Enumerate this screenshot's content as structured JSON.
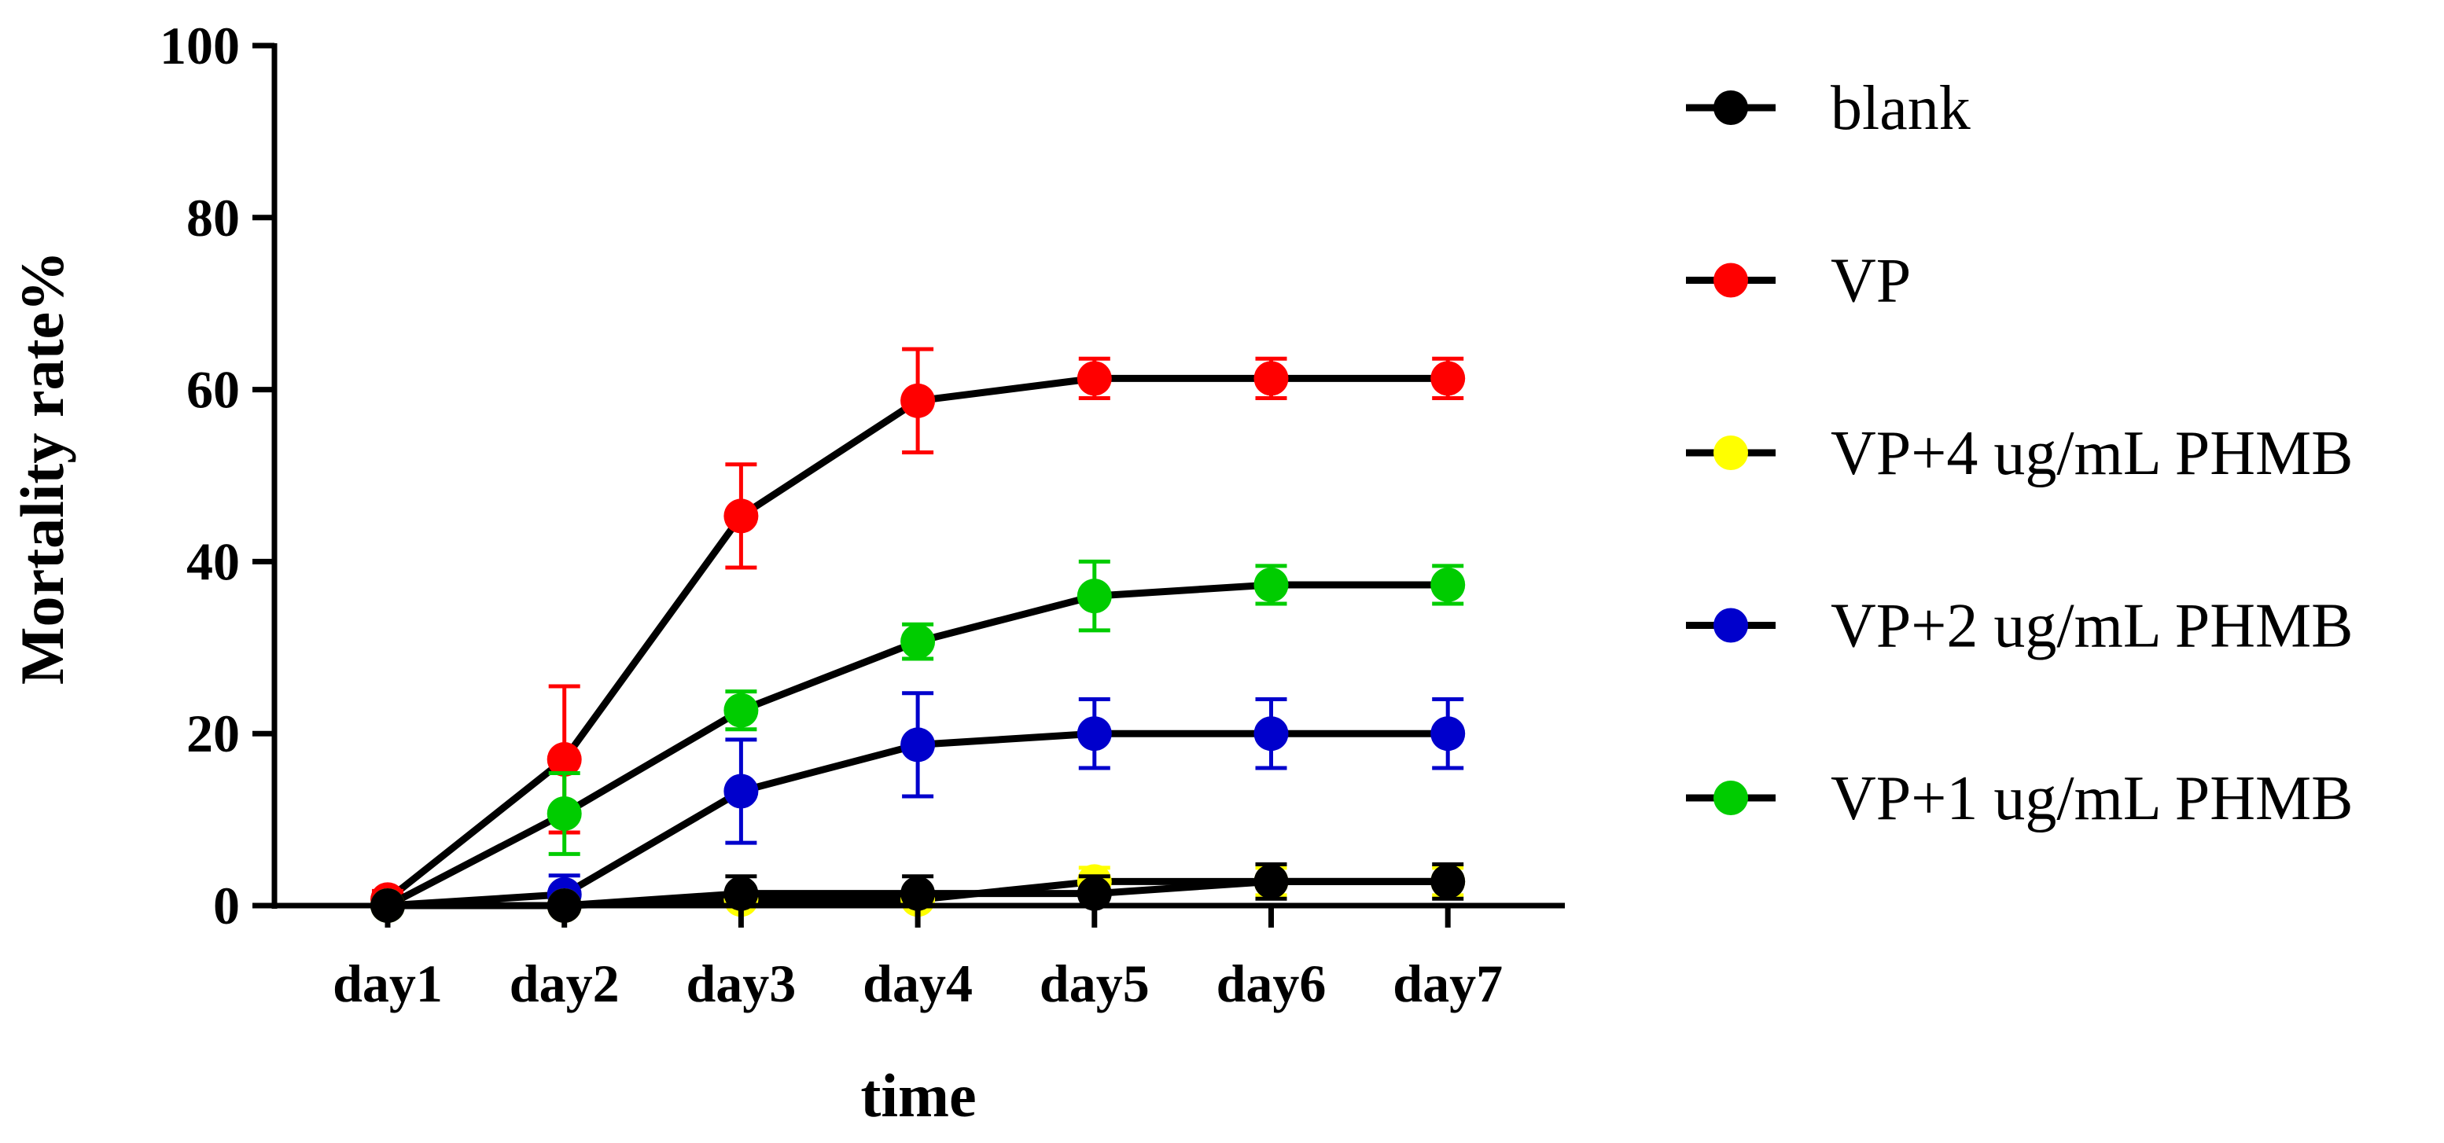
{
  "chart_data": {
    "type": "line",
    "title": "",
    "xlabel": "time",
    "ylabel": "Mortality rate%",
    "categories": [
      "day1",
      "day2",
      "day3",
      "day4",
      "day5",
      "day6",
      "day7"
    ],
    "ylim": [
      0,
      100
    ],
    "yticks": [
      0,
      20,
      40,
      60,
      80,
      100
    ],
    "grid": false,
    "legend_position": "right",
    "error_bars": true,
    "line_color": "#000000",
    "series": [
      {
        "name": "blank",
        "marker_color": "#000000",
        "values": [
          0,
          0,
          1.4,
          1.4,
          1.4,
          2.8,
          2.8
        ],
        "errors": [
          0,
          0,
          2.0,
          2.0,
          2.0,
          2.0,
          2.0
        ]
      },
      {
        "name": "VP",
        "marker_color": "#ff0000",
        "values": [
          0.7,
          17.0,
          45.3,
          58.7,
          61.3,
          61.3,
          61.3
        ],
        "errors": [
          1.0,
          8.5,
          6.0,
          6.0,
          2.3,
          2.3,
          2.3
        ]
      },
      {
        "name": "VP+4 ug/mL PHMB",
        "marker_color": "#ffff00",
        "values": [
          0,
          0,
          0.7,
          0.7,
          2.8,
          2.8,
          2.8
        ],
        "errors": [
          0,
          0,
          0.8,
          0.8,
          1.6,
          1.6,
          1.6
        ]
      },
      {
        "name": "VP+2 ug/mL PHMB",
        "marker_color": "#0000cc",
        "values": [
          0,
          1.3,
          13.3,
          18.7,
          20.0,
          20.0,
          20.0
        ],
        "errors": [
          0,
          2.2,
          6.0,
          6.0,
          4.0,
          4.0,
          4.0
        ]
      },
      {
        "name": "VP+1 ug/mL PHMB",
        "marker_color": "#00cc00",
        "values": [
          0,
          10.7,
          22.7,
          30.7,
          36.0,
          37.3,
          37.3
        ],
        "errors": [
          0,
          4.7,
          2.2,
          2.0,
          4.0,
          2.2,
          2.2
        ]
      }
    ]
  }
}
